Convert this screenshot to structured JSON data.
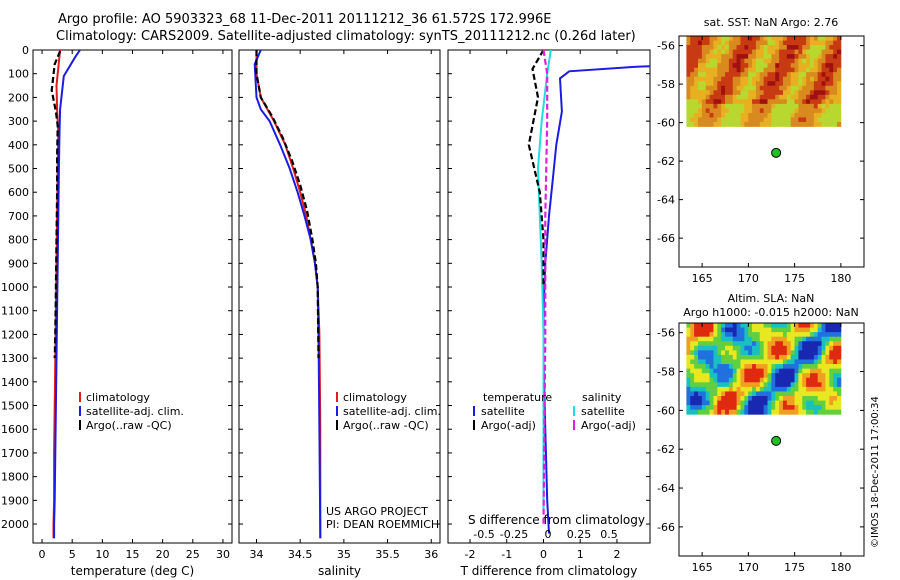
{
  "header": {
    "line1": "Argo profile: AO 5903323_68 11-Dec-2011 20111212_36 61.572S 172.996E",
    "line2": "Climatology: CARS2009. Satellite-adjusted climatology: synTS_20111212.nc (0.26d later)"
  },
  "colors": {
    "climatology": "#e01c1c",
    "satellite": "#1c1ce0",
    "argo": "#000000",
    "cyan": "#22dddd",
    "magenta": "#dd22dd"
  },
  "chart_data": [
    {
      "type": "line",
      "id": "temperature",
      "xlabel": "temperature (deg C)",
      "ylabel": "",
      "xlim": [
        -1.5,
        31.5
      ],
      "ylim": [
        2080,
        0
      ],
      "xticks": [
        0,
        5,
        10,
        15,
        20,
        25,
        30
      ],
      "yticks": [
        0,
        100,
        200,
        300,
        400,
        500,
        600,
        700,
        800,
        900,
        1000,
        1100,
        1200,
        1300,
        1400,
        1500,
        1600,
        1700,
        1800,
        1900,
        2000
      ],
      "legend": [
        "climatology",
        "satellite-adj. clim.",
        "Argo(..raw -QC)"
      ],
      "series": [
        {
          "name": "climatology",
          "style": "solid",
          "color": "#e01c1c",
          "x": [
            3.0,
            2.8,
            2.4,
            2.5,
            2.7,
            2.6,
            2.5,
            2.4,
            2.3,
            2.2,
            2.1,
            2.0,
            2.0,
            1.9,
            1.9
          ],
          "y": [
            0,
            50,
            150,
            250,
            350,
            500,
            700,
            900,
            1100,
            1300,
            1500,
            1700,
            1900,
            2000,
            2060
          ]
        },
        {
          "name": "satellite-adj. clim.",
          "style": "solid",
          "color": "#1c1ce0",
          "x": [
            6.3,
            5.5,
            3.6,
            3.0,
            2.9,
            2.8,
            2.7,
            2.6,
            2.5,
            2.4,
            2.3,
            2.2,
            2.1,
            2.0,
            2.0
          ],
          "y": [
            0,
            30,
            110,
            250,
            350,
            500,
            700,
            900,
            1100,
            1300,
            1500,
            1700,
            1900,
            2000,
            2060
          ]
        },
        {
          "name": "Argo(..raw -QC)",
          "style": "dashed",
          "color": "#000000",
          "x": [
            3.0,
            2.1,
            1.6,
            2.3,
            2.6,
            2.5,
            2.5,
            2.4,
            2.3,
            2.2,
            2.1
          ],
          "y": [
            5,
            60,
            170,
            260,
            320,
            450,
            600,
            800,
            1000,
            1200,
            1300
          ]
        }
      ]
    },
    {
      "type": "line",
      "id": "salinity",
      "xlabel": "salinity",
      "ylabel": "",
      "xlim": [
        33.8,
        36.1
      ],
      "ylim": [
        2080,
        0
      ],
      "xticks": [
        34,
        34.5,
        35,
        35.5,
        36
      ],
      "legend": [
        "climatology",
        "satellite-adj. clim.",
        "Argo(..raw -QC)"
      ],
      "annotation": [
        "US ARGO PROJECT",
        "PI: DEAN ROEMMICH"
      ],
      "series": [
        {
          "name": "climatology",
          "style": "solid",
          "color": "#e01c1c",
          "x": [
            34.0,
            34.0,
            34.05,
            34.2,
            34.33,
            34.42,
            34.5,
            34.57,
            34.62,
            34.67,
            34.7,
            34.72,
            34.73,
            34.73
          ],
          "y": [
            0,
            100,
            200,
            300,
            400,
            500,
            600,
            700,
            800,
            900,
            1000,
            1200,
            1600,
            2060
          ]
        },
        {
          "name": "satellite-adj. clim.",
          "style": "solid",
          "color": "#1c1ce0",
          "x": [
            34.05,
            33.98,
            34.0,
            34.05,
            34.15,
            34.27,
            34.38,
            34.47,
            34.55,
            34.62,
            34.67,
            34.7,
            34.71,
            34.72,
            34.73
          ],
          "y": [
            0,
            60,
            200,
            250,
            300,
            400,
            500,
            600,
            700,
            800,
            900,
            1000,
            1200,
            1600,
            2060
          ]
        },
        {
          "name": "Argo(..raw -QC)",
          "style": "dashed",
          "color": "#000000",
          "x": [
            34.0,
            34.0,
            34.05,
            34.18,
            34.3,
            34.41,
            34.5,
            34.58,
            34.64,
            34.68,
            34.7,
            34.71
          ],
          "y": [
            0,
            100,
            200,
            280,
            370,
            470,
            570,
            680,
            800,
            900,
            1000,
            1300
          ]
        }
      ]
    },
    {
      "type": "line",
      "id": "difference",
      "xlabel": "T difference from climatology",
      "xlabel2": "S difference from climatology",
      "xlim": [
        -2.6,
        2.9
      ],
      "ylim": [
        2080,
        0
      ],
      "xticks": [
        -2,
        -1,
        0,
        1,
        2
      ],
      "xticks_s": [
        "-0.5",
        "-0.25",
        "0",
        "0.25",
        "0.5"
      ],
      "legend_t_head": "temperature",
      "legend_s_head": "salinity",
      "legend_t": [
        "satellite",
        "Argo(-adj)"
      ],
      "legend_s": [
        "satellite",
        "Argo(-adj)"
      ],
      "series": [
        {
          "name": "satellite T",
          "style": "solid",
          "color": "#1c1ce0",
          "x": [
            3.5,
            2.6,
            0.7,
            0.45,
            0.5,
            0.35,
            0.25,
            0.15,
            0.05,
            0.0,
            0.0,
            0.05,
            0.1,
            0.15
          ],
          "y": [
            65,
            70,
            90,
            120,
            260,
            400,
            550,
            700,
            900,
            1100,
            1300,
            1600,
            1900,
            2040
          ]
        },
        {
          "name": "satellite S",
          "style": "solid",
          "color": "#22dddd",
          "x": [
            0.2,
            0.1,
            -0.05,
            -0.15,
            -0.1,
            -0.05,
            0.0,
            0.0,
            0.0
          ],
          "y": [
            0,
            100,
            300,
            500,
            700,
            900,
            1200,
            1600,
            1950
          ]
        },
        {
          "name": "Argo T",
          "style": "dashed",
          "color": "#000000",
          "x": [
            0.0,
            -0.3,
            -0.15,
            -0.4,
            -0.1,
            0.0,
            0.0
          ],
          "y": [
            0,
            80,
            200,
            400,
            600,
            800,
            1000
          ]
        },
        {
          "name": "Argo S",
          "style": "dashed",
          "color": "#dd22dd",
          "x": [
            0.0,
            0.1,
            0.1,
            0.05,
            0.05,
            0.0
          ],
          "y": [
            0,
            100,
            300,
            700,
            1200,
            2000
          ]
        }
      ]
    }
  ],
  "maps": {
    "sst": {
      "title": "sat. SST: NaN Argo: 2.76",
      "ylim": [
        -67.5,
        -55.5
      ],
      "xlim": [
        162.5,
        182.5
      ],
      "yticks": [
        -56,
        -58,
        -60,
        -62,
        -64,
        -66
      ],
      "xticks": [
        165,
        170,
        175,
        180
      ],
      "point": [
        173.0,
        -61.57
      ]
    },
    "sla": {
      "title1": "Altim. SLA: NaN",
      "title2": "Argo h1000: -0.015 h2000: NaN",
      "ylim": [
        -67.5,
        -55.5
      ],
      "xlim": [
        162.5,
        182.5
      ],
      "yticks": [
        -56,
        -58,
        -60,
        -62,
        -64,
        -66
      ],
      "xticks": [
        165,
        170,
        175,
        180
      ],
      "point": [
        173.0,
        -61.57
      ]
    }
  },
  "stamp": "©IMOS 18-Dec-2011 17:00:34"
}
